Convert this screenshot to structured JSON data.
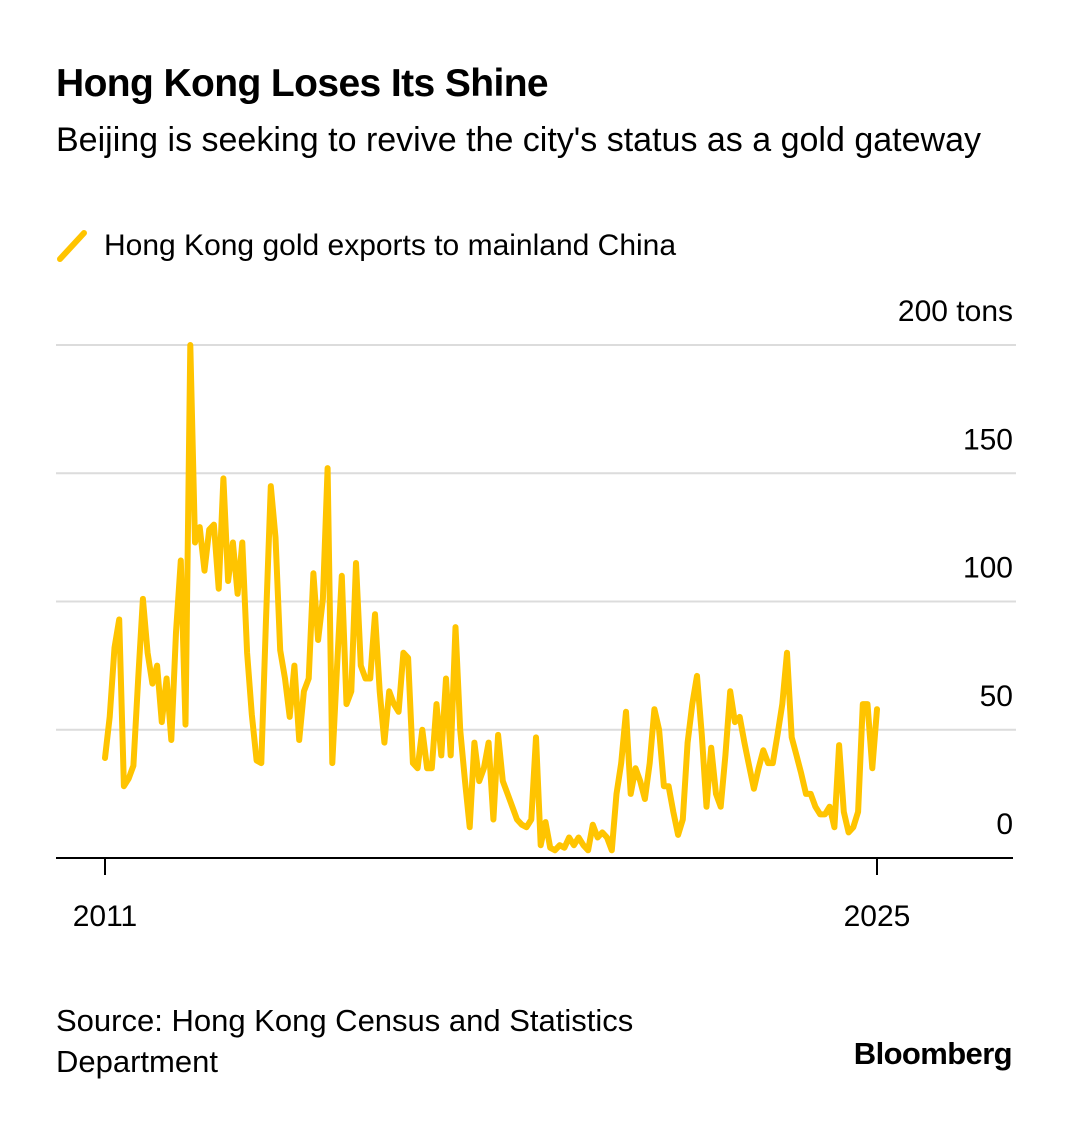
{
  "header": {
    "title": "Hong Kong Loses Its Shine",
    "subtitle": "Beijing is seeking to revive the city's status as a gold gateway"
  },
  "legend": {
    "label": "Hong Kong gold exports to mainland China",
    "color": "#FFC400"
  },
  "footer": {
    "source": "Source: Hong Kong Census and Statistics Department",
    "brand": "Bloomberg"
  },
  "chart_data": {
    "type": "line",
    "title": "Hong Kong Loses Its Shine",
    "subtitle": "Beijing is seeking to revive the city's status as a gold gateway",
    "xlabel": "",
    "ylabel": "",
    "x_axis": {
      "ticks": [
        "2011",
        "2025"
      ],
      "range": [
        "2011-01",
        "2025-06"
      ]
    },
    "y_axis": {
      "min": 0,
      "max": 200,
      "unit": "tons",
      "ticks": [
        {
          "value": 200,
          "label": "200 tons"
        },
        {
          "value": 150,
          "label": "150"
        },
        {
          "value": 100,
          "label": "100"
        },
        {
          "value": 50,
          "label": "50"
        },
        {
          "value": 0,
          "label": "0"
        }
      ],
      "position": "right"
    },
    "grid": true,
    "legend_position": "top-left",
    "series": [
      {
        "name": "Hong Kong gold exports to mainland China",
        "color": "#FFC400",
        "start": "2011-01",
        "frequency": "monthly",
        "values": [
          39,
          55,
          82,
          93,
          28,
          31,
          36,
          70,
          101,
          80,
          68,
          75,
          53,
          70,
          46,
          88,
          116,
          52,
          200,
          123,
          129,
          112,
          128,
          130,
          105,
          148,
          108,
          123,
          103,
          123,
          80,
          56,
          38,
          37,
          93,
          145,
          125,
          81,
          70,
          55,
          75,
          46,
          65,
          70,
          111,
          85,
          101,
          152,
          37,
          75,
          110,
          60,
          65,
          115,
          75,
          70,
          70,
          95,
          65,
          45,
          65,
          60,
          57,
          80,
          78,
          37,
          35,
          50,
          35,
          35,
          60,
          40,
          70,
          40,
          90,
          50,
          30,
          12,
          45,
          30,
          35,
          45,
          15,
          48,
          30,
          25,
          20,
          15,
          13,
          12,
          15,
          47,
          5,
          14,
          4,
          3,
          5,
          4,
          8,
          5,
          8,
          5,
          3,
          13,
          8,
          10,
          8,
          3,
          25,
          37,
          57,
          25,
          35,
          30,
          23,
          37,
          58,
          50,
          28,
          28,
          18,
          9,
          15,
          45,
          60,
          71,
          48,
          20,
          43,
          25,
          20,
          40,
          65,
          53,
          55,
          45,
          36,
          27,
          35,
          42,
          37,
          37,
          48,
          60,
          80,
          47,
          40,
          33,
          25,
          25,
          20,
          17,
          17,
          20,
          12,
          44,
          18,
          10,
          12,
          18,
          60,
          60,
          35,
          58
        ]
      }
    ]
  }
}
